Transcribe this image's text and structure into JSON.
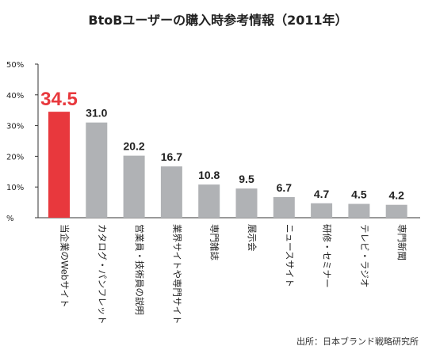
{
  "chart_data": {
    "type": "bar",
    "title": "BtoBユーザーの購入時参考情報（2011年）",
    "categories": [
      "当企業のWebサイト",
      "カタログ・パンフレット",
      "営業員・技術員の説明",
      "業界サイトや専門サイト",
      "専門雑誌",
      "展示会",
      "ニュースサイト",
      "研修・セミナー",
      "テレビ・ラジオ",
      "専門新聞"
    ],
    "values": [
      34.5,
      31.0,
      20.2,
      16.7,
      10.8,
      9.5,
      6.7,
      4.7,
      4.5,
      4.2
    ],
    "value_labels": [
      "34.5",
      "31.0",
      "20.2",
      "16.7",
      "10.8",
      "9.5",
      "6.7",
      "4.7",
      "4.5",
      "4.2"
    ],
    "y_ticks": [
      "%",
      "10%",
      "20%",
      "30%",
      "40%",
      "50%"
    ],
    "ylim": [
      0,
      50
    ],
    "highlight_index": 0,
    "colors": {
      "highlight": "#e8383d",
      "bar": "#b0b2b5",
      "axis": "#333333",
      "label": "#222222"
    },
    "source": "出所：日本ブランド戦略研究所"
  }
}
